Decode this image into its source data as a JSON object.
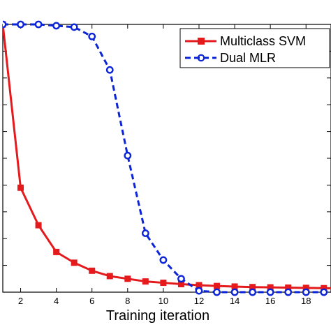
{
  "chart_data": {
    "type": "line",
    "xlabel": "Training iteration",
    "ylabel": "",
    "xlim": [
      1,
      19.4
    ],
    "ylim": [
      0,
      1
    ],
    "x_ticks": [
      2,
      4,
      6,
      8,
      10,
      12,
      14,
      16,
      18
    ],
    "x_tick_labels": [
      "2",
      "4",
      "6",
      "8",
      "10",
      "12",
      "14",
      "16",
      "18"
    ],
    "y_ticks_count": 10,
    "grid": false,
    "legend_position": "top-right",
    "series": [
      {
        "name": "Multiclass SVM",
        "color": "#e41a1c",
        "line_style": "solid",
        "marker": "square",
        "x": [
          1,
          2,
          3,
          4,
          5,
          6,
          7,
          8,
          9,
          10,
          11,
          12,
          13,
          14,
          15,
          16,
          17,
          18,
          19,
          20
        ],
        "y": [
          1.0,
          0.39,
          0.25,
          0.15,
          0.11,
          0.08,
          0.06,
          0.05,
          0.04,
          0.035,
          0.03,
          0.026,
          0.023,
          0.021,
          0.019,
          0.018,
          0.017,
          0.016,
          0.015,
          0.014
        ]
      },
      {
        "name": "Dual MLR",
        "color": "#0b24d8",
        "line_style": "dashed",
        "marker": "circle",
        "x": [
          1,
          2,
          3,
          4,
          5,
          6,
          7,
          8,
          9,
          10,
          11,
          12,
          13,
          14,
          15,
          16,
          17,
          18,
          19
        ],
        "y": [
          1.0,
          1.0,
          1.0,
          0.995,
          0.99,
          0.955,
          0.83,
          0.51,
          0.22,
          0.12,
          0.05,
          0.005,
          0.0,
          0.0,
          0.0,
          0.0,
          0.0,
          0.0,
          0.0
        ]
      }
    ]
  }
}
